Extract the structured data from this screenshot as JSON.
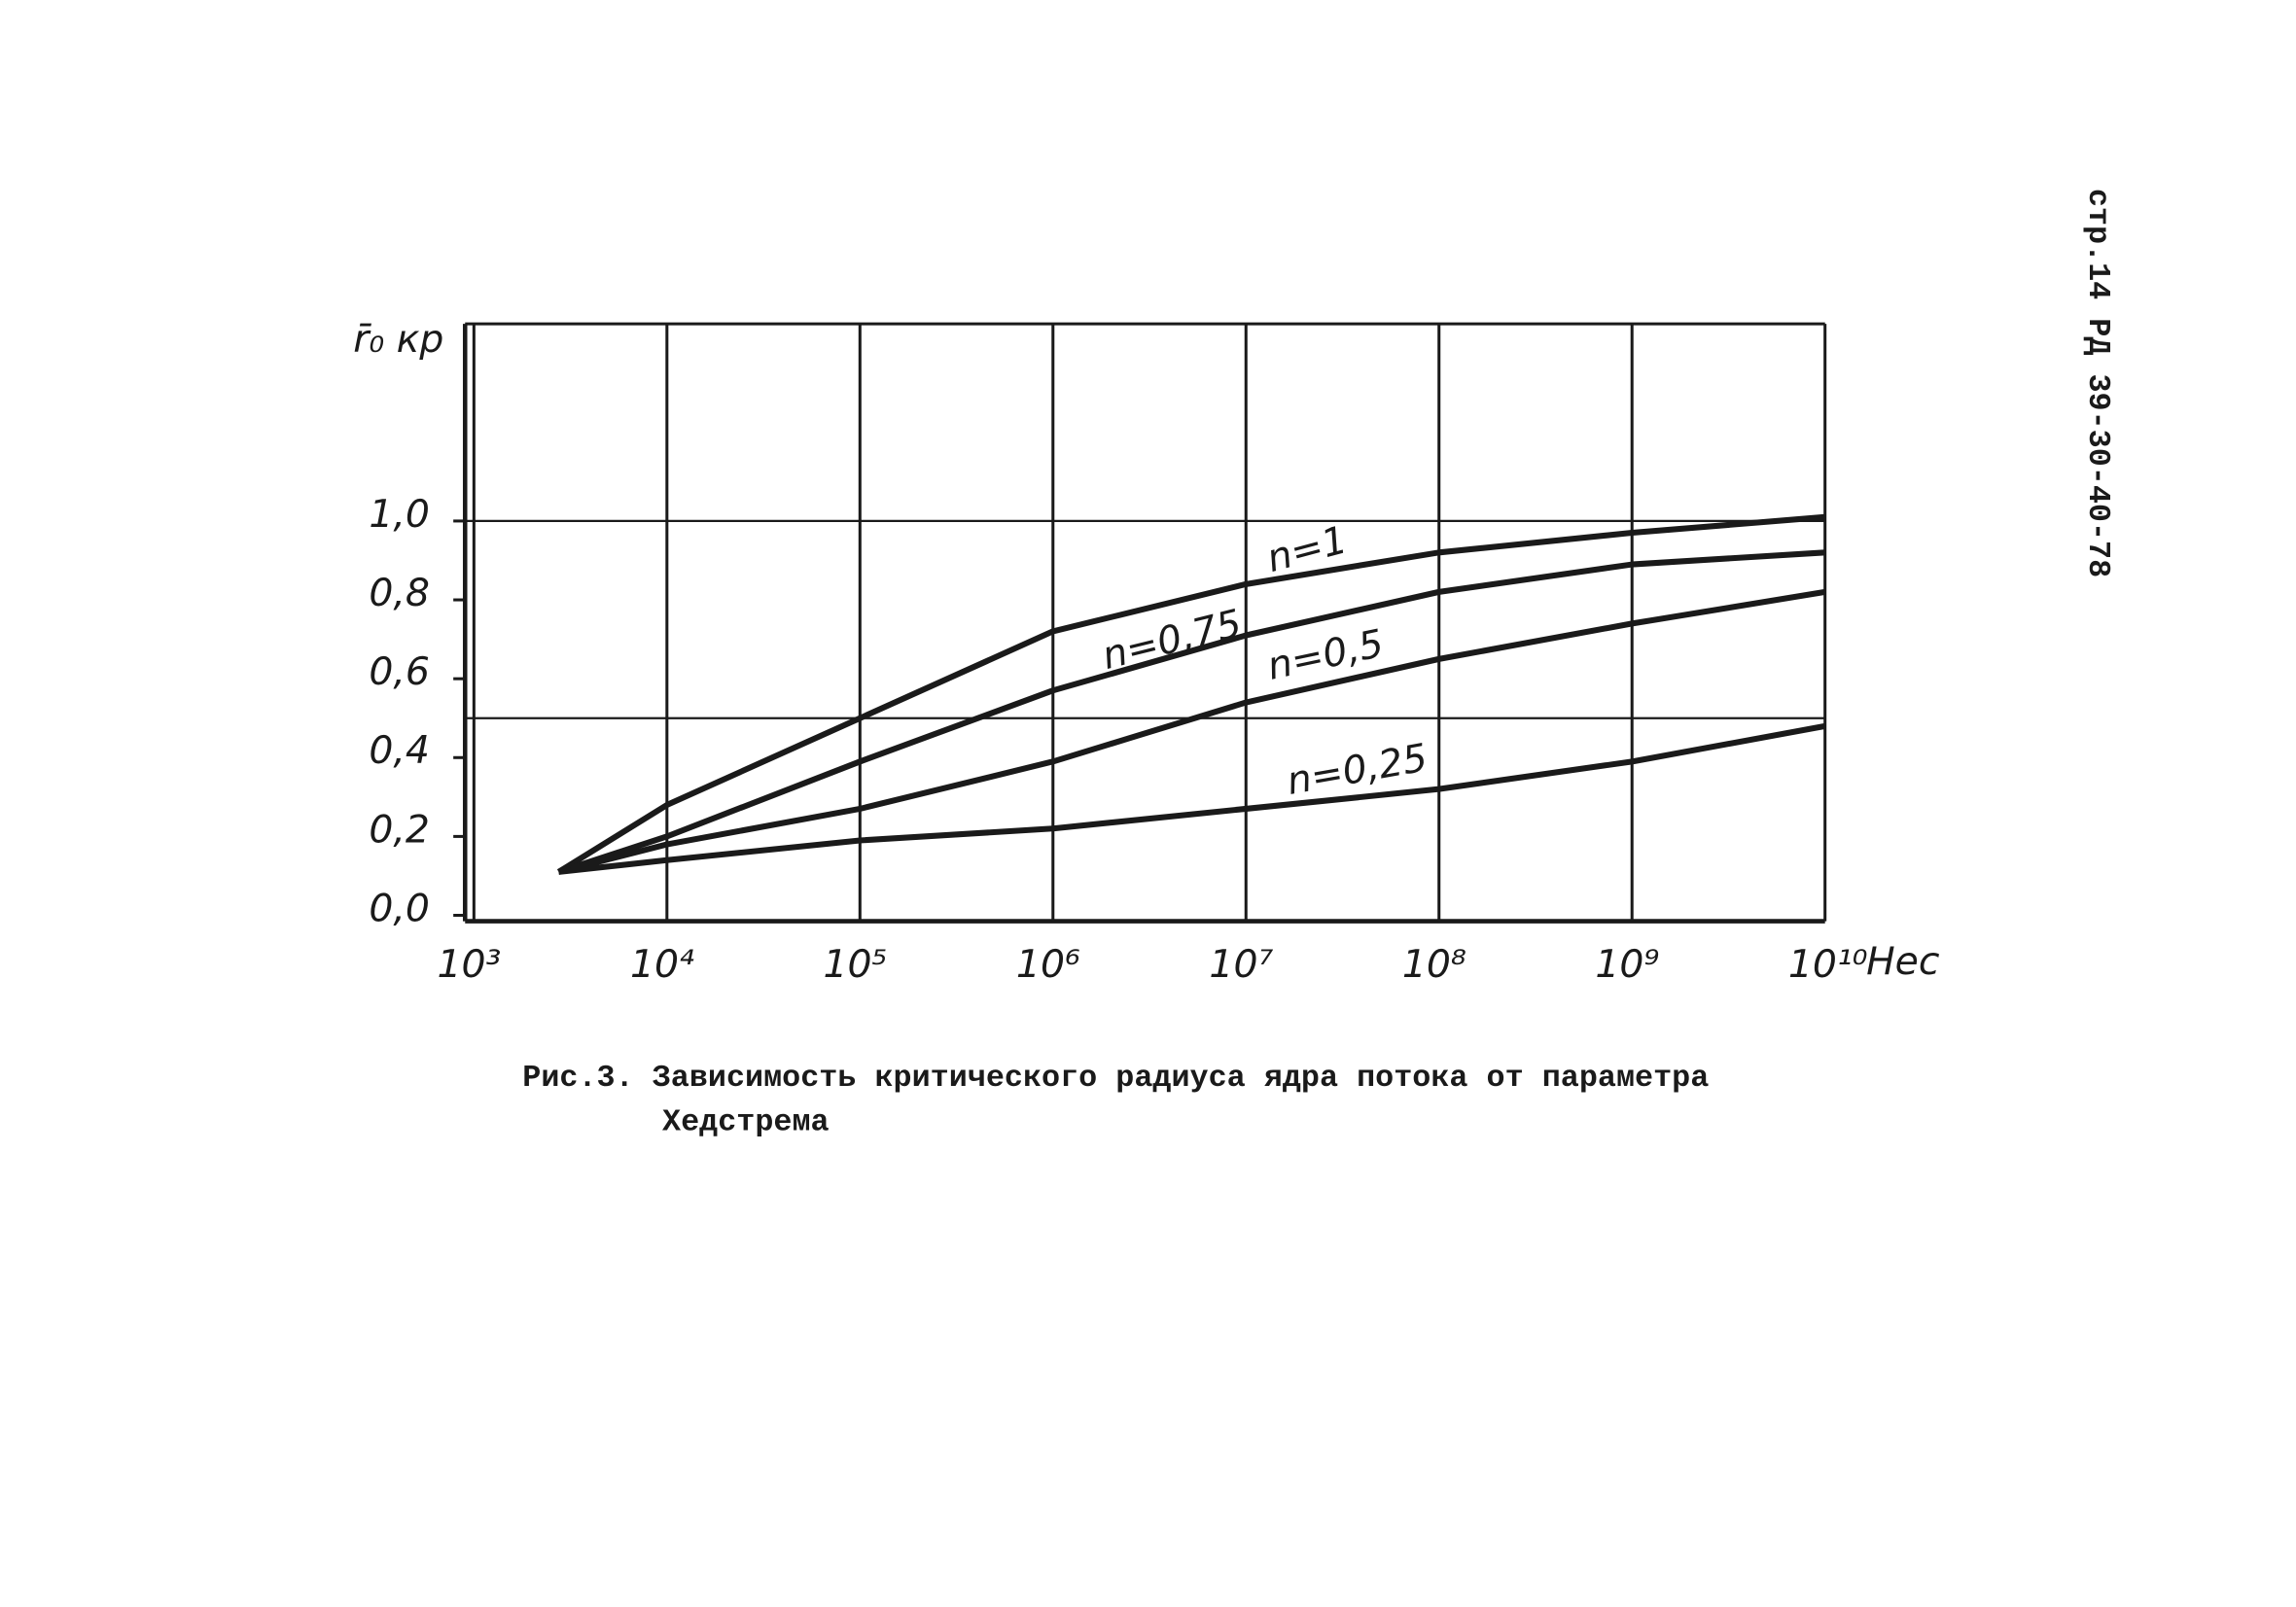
{
  "chart_data": {
    "type": "line",
    "y_label": "r̄₀ кр",
    "x_label": "Нес",
    "caption": [
      "Рис.3. Зависимость критического радиуса ядра потока от параметра",
      "Хедстрема"
    ],
    "page_ref": "стр.14 РД 39-30-40-78",
    "log_x": true,
    "xlim": [
      1000,
      10000000000
    ],
    "xticks": [
      {
        "value": 1000,
        "label": "10³"
      },
      {
        "value": 10000,
        "label": "10⁴"
      },
      {
        "value": 100000,
        "label": "10⁵"
      },
      {
        "value": 1000000,
        "label": "10⁶"
      },
      {
        "value": 10000000,
        "label": "10⁷"
      },
      {
        "value": 100000000,
        "label": "10⁸"
      },
      {
        "value": 1000000000,
        "label": "10⁹"
      },
      {
        "value": 10000000000,
        "label": "10¹⁰"
      }
    ],
    "ylim": [
      0,
      1.5
    ],
    "yticks": [
      {
        "value": 0,
        "label": "0,0"
      },
      {
        "value": 0.2,
        "label": "0,2"
      },
      {
        "value": 0.4,
        "label": "0,4"
      },
      {
        "value": 0.6,
        "label": "0,6"
      },
      {
        "value": 0.8,
        "label": "0,8"
      },
      {
        "value": 1,
        "label": "1,0"
      }
    ],
    "ygrid": [
      0.5,
      1
    ],
    "color": "#1a1a1a",
    "x": [
      2750,
      10000,
      100000,
      1000000,
      10000000,
      100000000,
      1000000000,
      10000000000
    ],
    "series": [
      {
        "name": "n=1",
        "values": [
          0.11,
          0.28,
          0.5,
          0.72,
          0.84,
          0.92,
          0.97,
          1.01
        ]
      },
      {
        "name": "n=0,75",
        "values": [
          0.11,
          0.2,
          0.39,
          0.57,
          0.71,
          0.82,
          0.89,
          0.92
        ]
      },
      {
        "name": "n=0,5",
        "values": [
          0.11,
          0.18,
          0.27,
          0.39,
          0.54,
          0.65,
          0.74,
          0.82
        ]
      },
      {
        "name": "n=0,25",
        "values": [
          0.11,
          0.14,
          0.19,
          0.22,
          0.27,
          0.32,
          0.39,
          0.48
        ]
      }
    ]
  }
}
